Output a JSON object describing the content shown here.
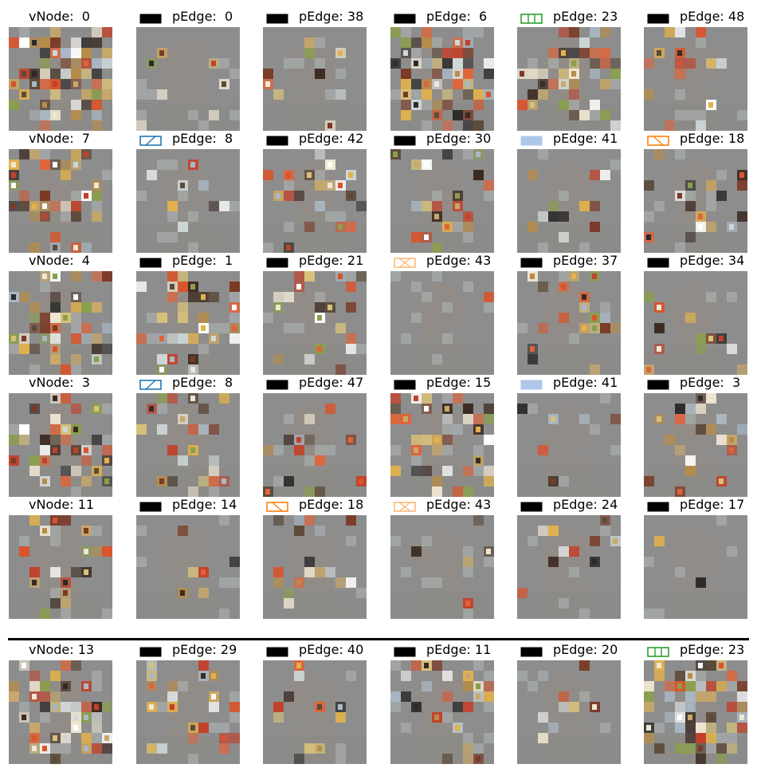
{
  "rows": [
    {
      "cells": [
        {
          "kind": "vnode",
          "label": "vNode:  0",
          "seed": 1,
          "density": 0.55
        },
        {
          "kind": "pedge",
          "label": "pEdge:  0",
          "swatch": "solid",
          "color": "#000000",
          "seed": 2,
          "density": 0.1
        },
        {
          "kind": "pedge",
          "label": "pEdge: 38",
          "swatch": "solid",
          "color": "#000000",
          "seed": 3,
          "density": 0.12
        },
        {
          "kind": "pedge",
          "label": "pEdge:  6",
          "swatch": "solid",
          "color": "#000000",
          "seed": 4,
          "density": 0.5
        },
        {
          "kind": "pedge",
          "label": "pEdge: 23",
          "swatch": "vbars",
          "color": "#2ca02c",
          "seed": 5,
          "density": 0.55
        },
        {
          "kind": "pedge",
          "label": "pEdge: 48",
          "swatch": "solid",
          "color": "#000000",
          "seed": 6,
          "density": 0.14
        }
      ]
    },
    {
      "cells": [
        {
          "kind": "vnode",
          "label": "vNode:  7",
          "seed": 7,
          "density": 0.35
        },
        {
          "kind": "pedge",
          "label": "pEdge:  8",
          "swatch": "slash",
          "color": "#1f77b4",
          "seed": 8,
          "density": 0.18
        },
        {
          "kind": "pedge",
          "label": "pEdge: 42",
          "swatch": "solid",
          "color": "#000000",
          "seed": 9,
          "density": 0.2
        },
        {
          "kind": "pedge",
          "label": "pEdge: 30",
          "swatch": "solid",
          "color": "#000000",
          "seed": 10,
          "density": 0.18
        },
        {
          "kind": "pedge",
          "label": "pEdge: 41",
          "swatch": "light",
          "color": "#aec7e8",
          "seed": 11,
          "density": 0.12
        },
        {
          "kind": "pedge",
          "label": "pEdge: 18",
          "swatch": "backslash",
          "color": "#ff7f0e",
          "seed": 12,
          "density": 0.18
        }
      ]
    },
    {
      "cells": [
        {
          "kind": "vnode",
          "label": "vNode:  4",
          "seed": 13,
          "density": 0.38
        },
        {
          "kind": "pedge",
          "label": "pEdge:  1",
          "swatch": "solid",
          "color": "#000000",
          "seed": 14,
          "density": 0.35
        },
        {
          "kind": "pedge",
          "label": "pEdge: 21",
          "swatch": "solid",
          "color": "#000000",
          "seed": 15,
          "density": 0.2
        },
        {
          "kind": "pedge",
          "label": "pEdge: 43",
          "swatch": "cross",
          "color": "#ffbb78",
          "seed": 16,
          "density": 0.08
        },
        {
          "kind": "pedge",
          "label": "pEdge: 37",
          "swatch": "solid",
          "color": "#000000",
          "seed": 17,
          "density": 0.22
        },
        {
          "kind": "pedge",
          "label": "pEdge: 34",
          "swatch": "solid",
          "color": "#000000",
          "seed": 18,
          "density": 0.1
        }
      ]
    },
    {
      "cells": [
        {
          "kind": "vnode",
          "label": "vNode:  3",
          "seed": 19,
          "density": 0.4
        },
        {
          "kind": "pedge",
          "label": "pEdge:  8",
          "swatch": "slash",
          "color": "#1f77b4",
          "seed": 20,
          "density": 0.18
        },
        {
          "kind": "pedge",
          "label": "pEdge: 47",
          "swatch": "solid",
          "color": "#000000",
          "seed": 21,
          "density": 0.16
        },
        {
          "kind": "pedge",
          "label": "pEdge: 15",
          "swatch": "solid",
          "color": "#000000",
          "seed": 22,
          "density": 0.38
        },
        {
          "kind": "pedge",
          "label": "pEdge: 41",
          "swatch": "light",
          "color": "#aec7e8",
          "seed": 23,
          "density": 0.12
        },
        {
          "kind": "pedge",
          "label": "pEdge:  3",
          "swatch": "solid",
          "color": "#000000",
          "seed": 24,
          "density": 0.2
        }
      ]
    },
    {
      "cells": [
        {
          "kind": "vnode",
          "label": "vNode: 11",
          "seed": 25,
          "density": 0.22
        },
        {
          "kind": "pedge",
          "label": "pEdge: 14",
          "swatch": "solid",
          "color": "#000000",
          "seed": 26,
          "density": 0.06
        },
        {
          "kind": "pedge",
          "label": "pEdge: 18",
          "swatch": "backslash",
          "color": "#ff7f0e",
          "seed": 27,
          "density": 0.16
        },
        {
          "kind": "pedge",
          "label": "pEdge: 43",
          "swatch": "cross",
          "color": "#ffbb78",
          "seed": 28,
          "density": 0.07
        },
        {
          "kind": "pedge",
          "label": "pEdge: 24",
          "swatch": "solid",
          "color": "#000000",
          "seed": 29,
          "density": 0.08
        },
        {
          "kind": "pedge",
          "label": "pEdge: 17",
          "swatch": "solid",
          "color": "#000000",
          "seed": 30,
          "density": 0.07
        }
      ]
    },
    {
      "cells": [
        {
          "kind": "vnode",
          "label": "vNode: 13",
          "seed": 31,
          "density": 0.45
        },
        {
          "kind": "pedge",
          "label": "pEdge: 29",
          "swatch": "solid",
          "color": "#000000",
          "seed": 32,
          "density": 0.22
        },
        {
          "kind": "pedge",
          "label": "pEdge: 40",
          "swatch": "solid",
          "color": "#000000",
          "seed": 33,
          "density": 0.12
        },
        {
          "kind": "pedge",
          "label": "pEdge: 11",
          "swatch": "solid",
          "color": "#000000",
          "seed": 34,
          "density": 0.22
        },
        {
          "kind": "pedge",
          "label": "pEdge: 20",
          "swatch": "solid",
          "color": "#000000",
          "seed": 35,
          "density": 0.08
        },
        {
          "kind": "pedge",
          "label": "pEdge: 23",
          "swatch": "vbars",
          "color": "#2ca02c",
          "seed": 36,
          "density": 0.5
        }
      ]
    }
  ]
}
